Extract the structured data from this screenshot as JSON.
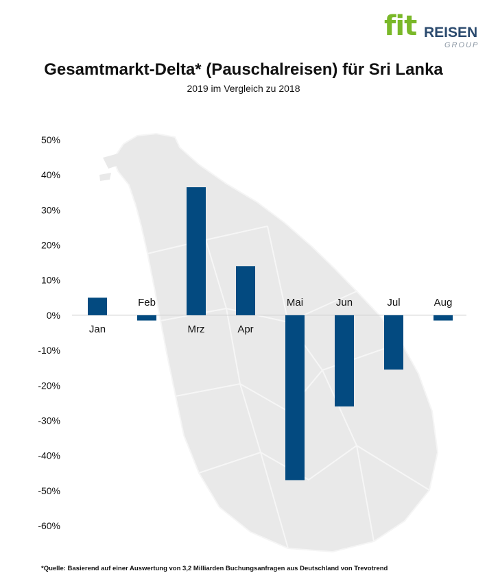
{
  "logo": {
    "fit": "fit",
    "reisen": "REISEN",
    "group": "GROUP"
  },
  "chart_data": {
    "type": "bar",
    "title": "Gesamtmarkt-Delta* (Pauschalreisen) für Sri Lanka",
    "subtitle": "2019 im Vergleich zu 2018",
    "categories": [
      "Jan",
      "Feb",
      "Mrz",
      "Apr",
      "Mai",
      "Jun",
      "Jul",
      "Aug"
    ],
    "values": [
      5,
      -1.5,
      36.5,
      14,
      -47,
      -26,
      -15.5,
      -1.5
    ],
    "ylim": [
      -60,
      50
    ],
    "yticks": [
      50,
      40,
      30,
      20,
      10,
      0,
      -10,
      -20,
      -30,
      -40,
      -50,
      -60
    ],
    "ytick_labels": [
      "50%",
      "40%",
      "30%",
      "20%",
      "10%",
      "0%",
      "-10%",
      "-20%",
      "-30%",
      "-40%",
      "-50%",
      "-60%"
    ],
    "bar_color": "#034a80",
    "background_map": "Sri Lanka",
    "grid": false
  },
  "footnote": "*Quelle: Basierend auf einer Auswertung von 3,2 Milliarden Buchungsanfragen aus Deutschland von Trevotrend"
}
